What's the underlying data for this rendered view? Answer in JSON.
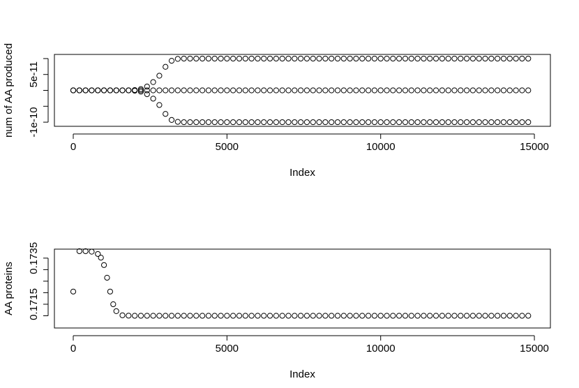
{
  "chart_data": [
    {
      "type": "scatter",
      "x_label": "Index",
      "y_label": "num of AA produced",
      "xlim": [
        -613,
        15521
      ],
      "xticks": [
        0,
        5000,
        10000,
        15000
      ],
      "ylim": [
        -1.13e-10,
        1.13e-10
      ],
      "yticks": [
        {
          "value": 5e-11,
          "label": "5e-11"
        },
        {
          "value": -1e-10,
          "label": "-1e-10"
        }
      ],
      "y_minor_ticks": [
        1e-10,
        0,
        -5e-11
      ],
      "x": [
        0,
        200,
        400,
        600,
        800,
        1000,
        1200,
        1400,
        1600,
        1800,
        2000,
        2200,
        2400,
        2600,
        2800,
        3000,
        3200,
        3400,
        3600,
        3800,
        4000,
        4200,
        4400,
        4600,
        4800,
        5000,
        5200,
        5400,
        5600,
        5800,
        6000,
        6200,
        6400,
        6600,
        6800,
        7000,
        7200,
        7400,
        7600,
        7800,
        8000,
        8200,
        8400,
        8600,
        8800,
        9000,
        9200,
        9400,
        9600,
        9800,
        10000,
        10200,
        10400,
        10600,
        10800,
        11000,
        11200,
        11400,
        11600,
        11800,
        12000,
        12200,
        12400,
        12600,
        12800,
        13000,
        13200,
        13400,
        13600,
        13800,
        14000,
        14200,
        14400,
        14600,
        14800
      ],
      "series": [
        {
          "color": "#000000",
          "values": [
            0,
            0,
            0,
            0,
            0,
            0,
            0,
            0,
            0,
            0,
            0,
            0,
            0,
            0,
            0,
            0,
            0,
            0,
            0,
            0,
            0,
            0,
            0,
            0,
            0,
            0,
            0,
            0,
            0,
            0,
            0,
            0,
            0,
            0,
            0,
            0,
            0,
            0,
            0,
            0,
            0,
            0,
            0,
            0,
            0,
            0,
            0,
            0,
            0,
            0,
            0,
            0,
            0,
            0,
            0,
            0,
            0,
            0,
            0,
            0,
            0,
            0,
            0,
            0,
            0,
            0,
            0,
            0,
            0,
            0,
            0,
            0,
            0,
            0,
            0
          ]
        },
        {
          "color": "#000000",
          "values": [
            0,
            0,
            0,
            0,
            0,
            0,
            0,
            0,
            0,
            0,
            1e-12,
            4e-12,
            1.2e-11,
            2.6e-11,
            4.6e-11,
            7.4e-11,
            9.3e-11,
            9.9e-11,
            1e-10,
            1e-10,
            1e-10,
            1e-10,
            1e-10,
            1e-10,
            1e-10,
            1e-10,
            1e-10,
            1e-10,
            1e-10,
            1e-10,
            1e-10,
            1e-10,
            1e-10,
            1e-10,
            1e-10,
            1e-10,
            1e-10,
            1e-10,
            1e-10,
            1e-10,
            1e-10,
            1e-10,
            1e-10,
            1e-10,
            1e-10,
            1e-10,
            1e-10,
            1e-10,
            1e-10,
            1e-10,
            1e-10,
            1e-10,
            1e-10,
            1e-10,
            1e-10,
            1e-10,
            1e-10,
            1e-10,
            1e-10,
            1e-10,
            1e-10,
            1e-10,
            1e-10,
            1e-10,
            1e-10,
            1e-10,
            1e-10,
            1e-10,
            1e-10,
            1e-10,
            1e-10,
            1e-10,
            1e-10,
            1e-10,
            1e-10
          ]
        },
        {
          "color": "#000000",
          "values": [
            0,
            0,
            0,
            0,
            0,
            0,
            0,
            0,
            0,
            0,
            -1e-12,
            -4e-12,
            -1.2e-11,
            -2.6e-11,
            -4.6e-11,
            -7.4e-11,
            -9.3e-11,
            -9.9e-11,
            -1e-10,
            -1e-10,
            -1e-10,
            -1e-10,
            -1e-10,
            -1e-10,
            -1e-10,
            -1e-10,
            -1e-10,
            -1e-10,
            -1e-10,
            -1e-10,
            -1e-10,
            -1e-10,
            -1e-10,
            -1e-10,
            -1e-10,
            -1e-10,
            -1e-10,
            -1e-10,
            -1e-10,
            -1e-10,
            -1e-10,
            -1e-10,
            -1e-10,
            -1e-10,
            -1e-10,
            -1e-10,
            -1e-10,
            -1e-10,
            -1e-10,
            -1e-10,
            -1e-10,
            -1e-10,
            -1e-10,
            -1e-10,
            -1e-10,
            -1e-10,
            -1e-10,
            -1e-10,
            -1e-10,
            -1e-10,
            -1e-10,
            -1e-10,
            -1e-10,
            -1e-10,
            -1e-10,
            -1e-10,
            -1e-10,
            -1e-10,
            -1e-10,
            -1e-10,
            -1e-10,
            -1e-10,
            -1e-10,
            -1e-10,
            -1e-10
          ]
        }
      ]
    },
    {
      "type": "scatter",
      "x_label": "Index",
      "y_label": "AA proteins",
      "xlim": [
        -613,
        15521
      ],
      "xticks": [
        0,
        5000,
        10000,
        15000
      ],
      "ylim": [
        0.17047,
        0.17389
      ],
      "yticks": [
        {
          "value": 0.1735,
          "label": "0.1735"
        },
        {
          "value": 0.1715,
          "label": "0.1715"
        }
      ],
      "y_minor_ticks": [
        0.173,
        0.1725,
        0.172,
        0.171
      ],
      "x": [
        0,
        200,
        400,
        600,
        800,
        900,
        1000,
        1100,
        1200,
        1300,
        1400,
        1600,
        1800,
        2000,
        2200,
        2400,
        2600,
        2800,
        3000,
        3200,
        3400,
        3600,
        3800,
        4000,
        4200,
        4400,
        4600,
        4800,
        5000,
        5200,
        5400,
        5600,
        5800,
        6000,
        6200,
        6400,
        6600,
        6800,
        7000,
        7200,
        7400,
        7600,
        7800,
        8000,
        8200,
        8400,
        8600,
        8800,
        9000,
        9200,
        9400,
        9600,
        9800,
        10000,
        10200,
        10400,
        10600,
        10800,
        11000,
        11200,
        11400,
        11600,
        11800,
        12000,
        12200,
        12400,
        12600,
        12800,
        13000,
        13200,
        13400,
        13600,
        13800,
        14000,
        14200,
        14400,
        14600,
        14800
      ],
      "series": [
        {
          "color": "#000000",
          "values": [
            0.17205,
            0.1738,
            0.1738,
            0.17378,
            0.17368,
            0.17352,
            0.1732,
            0.17265,
            0.17205,
            0.1715,
            0.1712,
            0.17102,
            0.171005,
            0.171,
            0.171,
            0.171,
            0.171,
            0.171,
            0.171,
            0.171,
            0.171,
            0.171,
            0.171,
            0.171,
            0.171,
            0.171,
            0.171,
            0.171,
            0.171,
            0.171,
            0.171,
            0.171,
            0.171,
            0.171,
            0.171,
            0.171,
            0.171,
            0.171,
            0.171,
            0.171,
            0.171,
            0.171,
            0.171,
            0.171,
            0.171,
            0.171,
            0.171,
            0.171,
            0.171,
            0.171,
            0.171,
            0.171,
            0.171,
            0.171,
            0.171,
            0.171,
            0.171,
            0.171,
            0.171,
            0.171,
            0.171,
            0.171,
            0.171,
            0.171,
            0.171,
            0.171,
            0.171,
            0.171,
            0.171,
            0.171,
            0.171,
            0.171,
            0.171,
            0.171,
            0.171,
            0.171,
            0.171,
            0.171
          ]
        }
      ]
    }
  ]
}
